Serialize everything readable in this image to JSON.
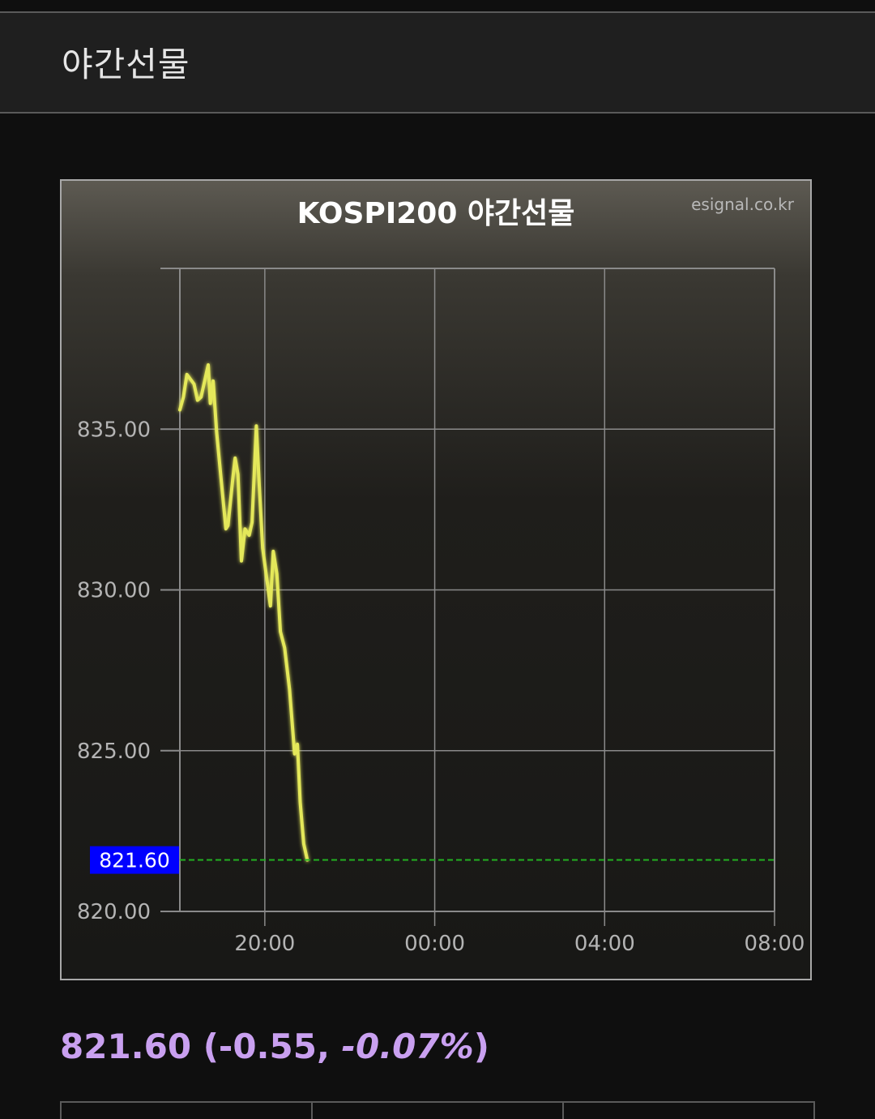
{
  "header": {
    "title": "야간선물"
  },
  "chart_data": {
    "type": "line",
    "title": "KOSPI200 야간선물",
    "watermark": "esignal.co.kr",
    "xlabel": "",
    "ylabel": "",
    "x_ticks": [
      "20:00",
      "00:00",
      "04:00",
      "08:00"
    ],
    "y_ticks": [
      "835.00",
      "830.00",
      "825.00",
      "820.00"
    ],
    "ylim": [
      820,
      840
    ],
    "xlim_hours_from_18": [
      0,
      14
    ],
    "grid": true,
    "current_value_label": "821.60",
    "current_value": 821.6,
    "series": [
      {
        "color": "#e4e85a",
        "points": [
          [
            "18:00",
            835.6
          ],
          [
            "18:05",
            836.0
          ],
          [
            "18:10",
            836.7
          ],
          [
            "18:20",
            836.4
          ],
          [
            "18:25",
            835.9
          ],
          [
            "18:30",
            836.0
          ],
          [
            "18:40",
            837.0
          ],
          [
            "18:43",
            835.8
          ],
          [
            "18:47",
            836.5
          ],
          [
            "18:52",
            834.9
          ],
          [
            "18:58",
            833.5
          ],
          [
            "19:05",
            831.9
          ],
          [
            "19:08",
            832.0
          ],
          [
            "19:15",
            833.5
          ],
          [
            "19:18",
            834.1
          ],
          [
            "19:22",
            833.6
          ],
          [
            "19:27",
            830.9
          ],
          [
            "19:32",
            831.9
          ],
          [
            "19:38",
            831.7
          ],
          [
            "19:42",
            832.1
          ],
          [
            "19:48",
            835.1
          ],
          [
            "19:52",
            833.3
          ],
          [
            "19:57",
            831.3
          ],
          [
            "20:08",
            829.5
          ],
          [
            "20:12",
            831.2
          ],
          [
            "20:17",
            830.5
          ],
          [
            "20:22",
            828.7
          ],
          [
            "20:28",
            828.2
          ],
          [
            "20:35",
            826.9
          ],
          [
            "20:42",
            824.9
          ],
          [
            "20:46",
            825.2
          ],
          [
            "20:50",
            823.4
          ],
          [
            "20:55",
            822.1
          ],
          [
            "21:00",
            821.6
          ]
        ]
      }
    ],
    "reference_line": {
      "value": 821.6,
      "color": "#22b022",
      "style": "dashed"
    },
    "label_color": "#0000ff"
  },
  "quote": {
    "price": "821.60",
    "change": "(-0.55, ",
    "percent": "-0.07%",
    "close": ")"
  }
}
